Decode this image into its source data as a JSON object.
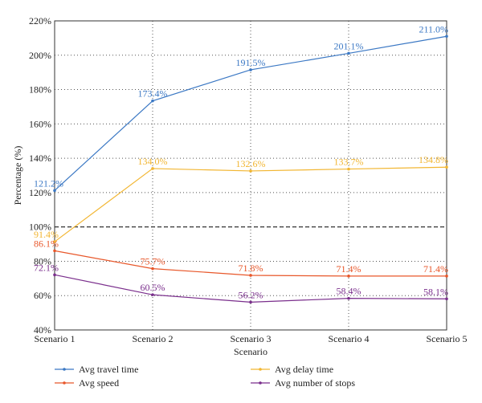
{
  "chart_data": {
    "type": "line",
    "xlabel": "Scenario",
    "ylabel": "Percentage (%)",
    "categories": [
      "Scenario 1",
      "Scenario 2",
      "Scenario 3",
      "Scenario 4",
      "Scenario 5"
    ],
    "ylim": [
      40,
      220
    ],
    "y_ticks": [
      40,
      60,
      80,
      100,
      120,
      140,
      160,
      180,
      200,
      220
    ],
    "y_tick_suffix": "%",
    "grid": "dotted",
    "reference_line": {
      "value": 100,
      "style": "dashed"
    },
    "legend_position": "bottom",
    "series": [
      {
        "name": "Avg travel time",
        "color": "#3b78c4",
        "values": [
          121.2,
          173.4,
          191.5,
          201.1,
          211.0
        ],
        "labels": [
          "121.2%",
          "173.4%",
          "191.5%",
          "201.1%",
          "211.0%"
        ]
      },
      {
        "name": "Avg delay time",
        "color": "#f2b632",
        "values": [
          91.4,
          134.0,
          132.6,
          133.7,
          134.8
        ],
        "labels": [
          "91.4%",
          "134.0%",
          "132.6%",
          "133.7%",
          "134.8%"
        ]
      },
      {
        "name": "Avg speed",
        "color": "#e8572a",
        "values": [
          86.1,
          75.7,
          71.8,
          71.4,
          71.4
        ],
        "labels": [
          "86.1%",
          "75.7%",
          "71.8%",
          "71.4%",
          "71.4%"
        ]
      },
      {
        "name": "Avg number of stops",
        "color": "#7a2e8c",
        "values": [
          72.1,
          60.5,
          56.2,
          58.4,
          58.1
        ],
        "labels": [
          "72.1%",
          "60.5%",
          "56.2%",
          "58.4%",
          "58.1%"
        ]
      }
    ]
  }
}
